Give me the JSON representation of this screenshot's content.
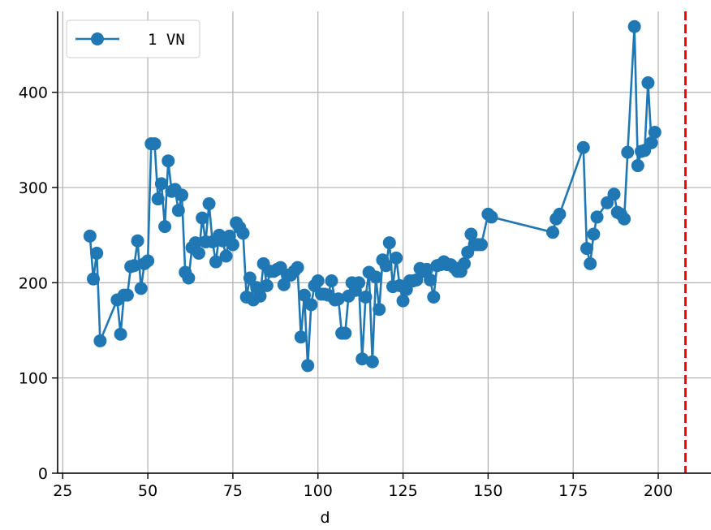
{
  "chart_data": {
    "type": "line",
    "title": "",
    "xlabel": "d",
    "ylabel": "",
    "xlim": [
      23.5,
      215.5
    ],
    "ylim": [
      0,
      485
    ],
    "x_ticks": [
      25,
      50,
      75,
      100,
      125,
      150,
      175,
      200
    ],
    "y_ticks": [
      0,
      100,
      200,
      300,
      400
    ],
    "grid": true,
    "legend": {
      "position": "top-left"
    },
    "series": [
      {
        "name": "1 VN",
        "color": "#1f77b4",
        "marker": "circle",
        "points": [
          [
            33,
            249
          ],
          [
            34,
            204
          ],
          [
            35,
            231
          ],
          [
            36,
            139
          ],
          [
            41,
            182
          ],
          [
            42,
            146
          ],
          [
            43,
            187
          ],
          [
            44,
            187
          ],
          [
            45,
            217
          ],
          [
            46,
            218
          ],
          [
            47,
            244
          ],
          [
            48,
            194
          ],
          [
            49,
            220
          ],
          [
            50,
            223
          ],
          [
            51,
            346
          ],
          [
            52,
            346
          ],
          [
            53,
            288
          ],
          [
            54,
            304
          ],
          [
            55,
            259
          ],
          [
            56,
            328
          ],
          [
            57,
            296
          ],
          [
            58,
            298
          ],
          [
            59,
            276
          ],
          [
            60,
            292
          ],
          [
            61,
            211
          ],
          [
            62,
            205
          ],
          [
            63,
            237
          ],
          [
            64,
            242
          ],
          [
            65,
            231
          ],
          [
            66,
            268
          ],
          [
            67,
            243
          ],
          [
            68,
            283
          ],
          [
            69,
            243
          ],
          [
            70,
            222
          ],
          [
            71,
            250
          ],
          [
            72,
            244
          ],
          [
            73,
            228
          ],
          [
            74,
            249
          ],
          [
            75,
            240
          ],
          [
            76,
            263
          ],
          [
            77,
            258
          ],
          [
            78,
            252
          ],
          [
            79,
            185
          ],
          [
            80,
            205
          ],
          [
            81,
            182
          ],
          [
            82,
            195
          ],
          [
            83,
            186
          ],
          [
            84,
            220
          ],
          [
            85,
            197
          ],
          [
            86,
            212
          ],
          [
            87,
            212
          ],
          [
            88,
            214
          ],
          [
            89,
            216
          ],
          [
            90,
            198
          ],
          [
            91,
            208
          ],
          [
            92,
            208
          ],
          [
            93,
            212
          ],
          [
            94,
            216
          ],
          [
            95,
            143
          ],
          [
            96,
            187
          ],
          [
            97,
            113
          ],
          [
            98,
            177
          ],
          [
            99,
            197
          ],
          [
            100,
            202
          ],
          [
            101,
            188
          ],
          [
            102,
            188
          ],
          [
            103,
            187
          ],
          [
            104,
            202
          ],
          [
            105,
            182
          ],
          [
            106,
            183
          ],
          [
            107,
            147
          ],
          [
            108,
            147
          ],
          [
            109,
            186
          ],
          [
            110,
            200
          ],
          [
            111,
            192
          ],
          [
            112,
            200
          ],
          [
            113,
            120
          ],
          [
            114,
            185
          ],
          [
            115,
            211
          ],
          [
            116,
            117
          ],
          [
            117,
            206
          ],
          [
            118,
            172
          ],
          [
            119,
            224
          ],
          [
            120,
            218
          ],
          [
            121,
            242
          ],
          [
            122,
            196
          ],
          [
            123,
            226
          ],
          [
            124,
            197
          ],
          [
            125,
            181
          ],
          [
            126,
            193
          ],
          [
            127,
            202
          ],
          [
            128,
            202
          ],
          [
            129,
            203
          ],
          [
            130,
            215
          ],
          [
            131,
            212
          ],
          [
            132,
            214
          ],
          [
            133,
            203
          ],
          [
            134,
            185
          ],
          [
            135,
            218
          ],
          [
            136,
            219
          ],
          [
            137,
            222
          ],
          [
            138,
            219
          ],
          [
            139,
            219
          ],
          [
            140,
            216
          ],
          [
            141,
            212
          ],
          [
            142,
            212
          ],
          [
            143,
            220
          ],
          [
            144,
            232
          ],
          [
            145,
            251
          ],
          [
            146,
            240
          ],
          [
            147,
            240
          ],
          [
            148,
            240
          ],
          [
            150,
            272
          ],
          [
            151,
            269
          ],
          [
            169,
            253
          ],
          [
            170,
            267
          ],
          [
            171,
            272
          ],
          [
            178,
            342
          ],
          [
            179,
            236
          ],
          [
            180,
            220
          ],
          [
            181,
            251
          ],
          [
            182,
            269
          ],
          [
            185,
            284
          ],
          [
            187,
            293
          ],
          [
            188,
            274
          ],
          [
            189,
            272
          ],
          [
            190,
            267
          ],
          [
            191,
            337
          ],
          [
            193,
            469
          ],
          [
            194,
            323
          ],
          [
            195,
            338
          ],
          [
            196,
            339
          ],
          [
            197,
            410
          ],
          [
            198,
            347
          ],
          [
            199,
            358
          ]
        ]
      }
    ],
    "reference_lines": [
      {
        "orientation": "vertical",
        "x": 208,
        "color": "#ff0000",
        "style": "dashed"
      }
    ]
  }
}
